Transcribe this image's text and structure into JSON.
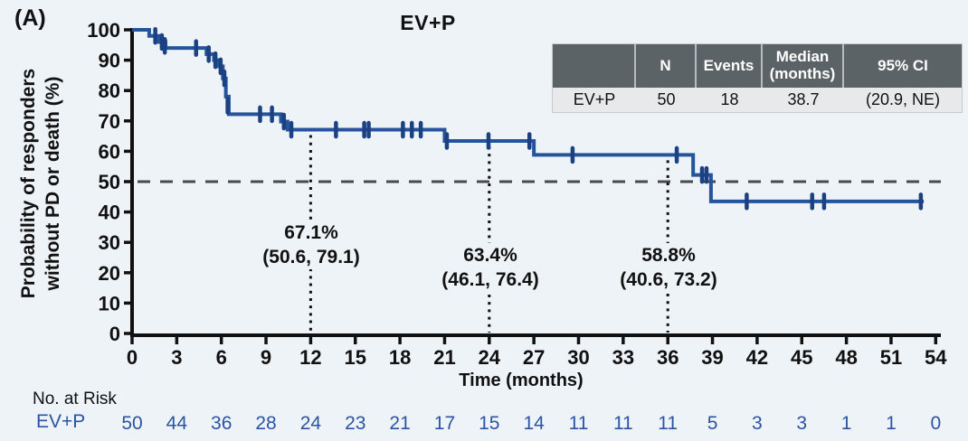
{
  "panel_label": "(A)",
  "title": "EV+P",
  "y_axis": {
    "label_line1": "Probability of responders",
    "label_line2": "without PD or death (%)",
    "ticks": [
      0,
      10,
      20,
      30,
      40,
      50,
      60,
      70,
      80,
      90,
      100
    ]
  },
  "x_axis": {
    "label": "Time (months)",
    "ticks": [
      0,
      3,
      6,
      9,
      12,
      15,
      18,
      21,
      24,
      27,
      30,
      33,
      36,
      39,
      42,
      45,
      48,
      51,
      54
    ]
  },
  "summary_table": {
    "headers": [
      "",
      "N",
      "Events",
      "Median (months)",
      "95% CI"
    ],
    "rows": [
      [
        "EV+P",
        "50",
        "18",
        "38.7",
        "(20.9, NE)"
      ]
    ]
  },
  "annotations": [
    {
      "time": 12,
      "value": "67.1%",
      "ci": "(50.6, 79.1)",
      "curve_value": 67.1
    },
    {
      "time": 24,
      "value": "63.4%",
      "ci": "(46.1, 76.4)",
      "curve_value": 63.4
    },
    {
      "time": 36,
      "value": "58.8%",
      "ci": "(40.6, 73.2)",
      "curve_value": 58.8
    }
  ],
  "no_at_risk": {
    "label": "No. at Risk",
    "row_label": "EV+P",
    "values": [
      50,
      44,
      36,
      28,
      24,
      23,
      21,
      17,
      15,
      14,
      11,
      11,
      11,
      5,
      3,
      3,
      1,
      1,
      0
    ]
  },
  "chart_data": {
    "type": "line",
    "subtype": "kaplan-meier-step",
    "title": "EV+P",
    "xlabel": "Time (months)",
    "ylabel": "Probability of responders without PD or death (%)",
    "xlim": [
      0,
      54
    ],
    "ylim": [
      0,
      100
    ],
    "reference_line_y": 50,
    "series": [
      {
        "name": "EV+P",
        "steps": [
          [
            0,
            100
          ],
          [
            1.15,
            98
          ],
          [
            1.8,
            96
          ],
          [
            2.25,
            94
          ],
          [
            5.0,
            92
          ],
          [
            5.5,
            90
          ],
          [
            5.85,
            88
          ],
          [
            6.1,
            84
          ],
          [
            6.3,
            78
          ],
          [
            6.5,
            72.2
          ],
          [
            10.0,
            69.8
          ],
          [
            10.45,
            67.1
          ],
          [
            21.0,
            63.4
          ],
          [
            27.0,
            58.8
          ],
          [
            37.7,
            52.2
          ],
          [
            38.9,
            43.5
          ]
        ],
        "curve_end": 53.2,
        "censors": [
          [
            1.56,
            98
          ],
          [
            2.0,
            96
          ],
          [
            2.2,
            94.7
          ],
          [
            4.3,
            94
          ],
          [
            5.15,
            92
          ],
          [
            5.6,
            90
          ],
          [
            5.95,
            88
          ],
          [
            6.2,
            84
          ],
          [
            6.42,
            75
          ],
          [
            8.6,
            72.2
          ],
          [
            9.4,
            72.2
          ],
          [
            10.2,
            69.8
          ],
          [
            10.7,
            67.1
          ],
          [
            13.7,
            67.1
          ],
          [
            15.6,
            67.1
          ],
          [
            15.9,
            67.1
          ],
          [
            18.2,
            67.1
          ],
          [
            18.8,
            67.1
          ],
          [
            19.4,
            67.1
          ],
          [
            21.15,
            63.4
          ],
          [
            23.95,
            63.4
          ],
          [
            26.7,
            63.4
          ],
          [
            29.6,
            58.8
          ],
          [
            36.6,
            58.8
          ],
          [
            38.3,
            52.2
          ],
          [
            38.6,
            52.2
          ],
          [
            41.3,
            43.5
          ],
          [
            45.7,
            43.5
          ],
          [
            46.5,
            43.5
          ],
          [
            53.0,
            43.5
          ]
        ]
      }
    ],
    "colors": {
      "curve": "#24549c",
      "censor": "#1b4183",
      "risk_text": "#2b54a4",
      "reference_line": "#4a4a4a",
      "dotted_line": "#111111",
      "axis": "#111111",
      "table_header_bg": "#5c6366",
      "table_row_bg": "#e7e9eb",
      "background": "#eef3f7"
    }
  }
}
